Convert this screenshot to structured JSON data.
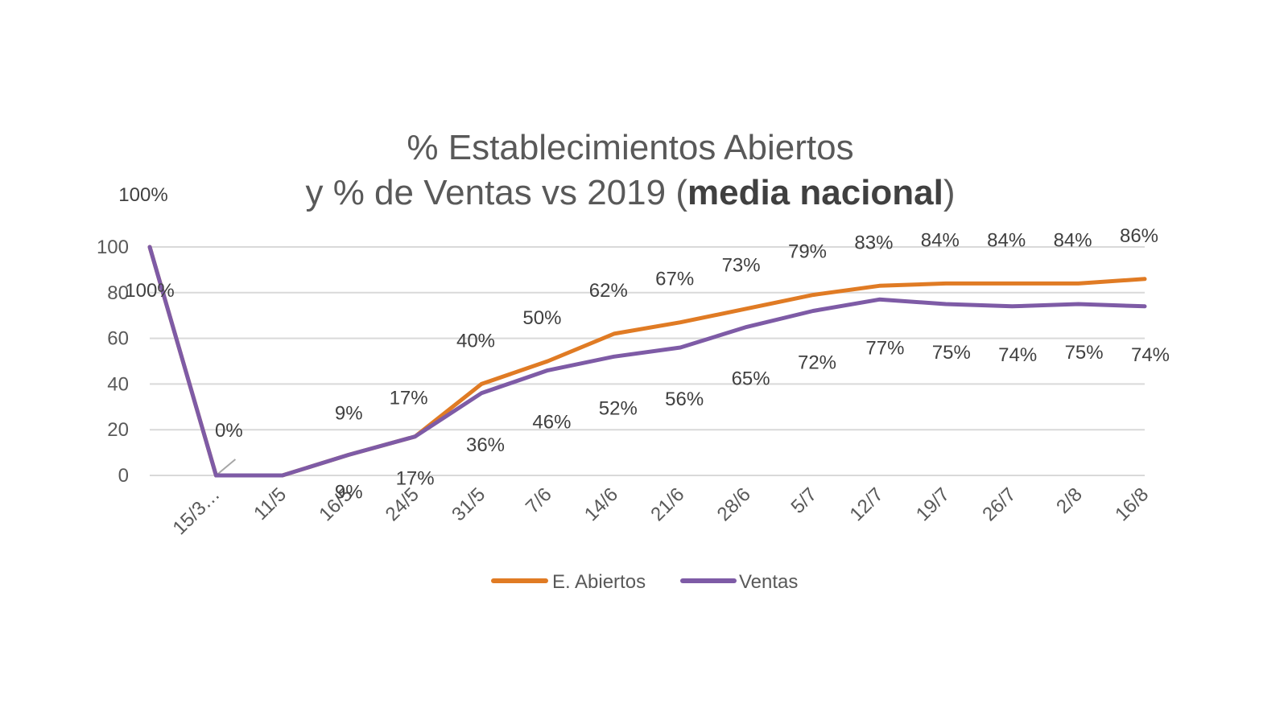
{
  "chart_data": {
    "type": "line",
    "title": "% Establecimientos Abiertos",
    "subtitle_prefix": "y % de Ventas vs 2019 (",
    "subtitle_bold": "media nacional",
    "subtitle_suffix": ")",
    "categories": [
      "",
      "15/3…",
      "11/5",
      "16/5",
      "24/5",
      "31/5",
      "7/6",
      "14/6",
      "21/6",
      "28/6",
      "5/7",
      "12/7",
      "19/7",
      "26/7",
      "2/8",
      "16/8"
    ],
    "ylim": [
      0,
      100
    ],
    "yticks": [
      0,
      20,
      40,
      60,
      80,
      100
    ],
    "grid": true,
    "legend_position": "bottom",
    "series": [
      {
        "name": "E. Abiertos",
        "color": "#e07b24",
        "values": [
          100,
          0,
          0,
          9,
          17,
          40,
          50,
          62,
          67,
          73,
          79,
          83,
          84,
          84,
          84,
          86
        ],
        "labels": [
          "100%",
          "0%",
          "",
          "9%",
          "17%",
          "40%",
          "50%",
          "62%",
          "67%",
          "73%",
          "79%",
          "83%",
          "84%",
          "84%",
          "84%",
          "86%"
        ]
      },
      {
        "name": "Ventas",
        "color": "#7e5ba6",
        "values": [
          100,
          0,
          0,
          9,
          17,
          36,
          46,
          52,
          56,
          65,
          72,
          77,
          75,
          74,
          75,
          74
        ],
        "labels": [
          "100%",
          "",
          "",
          "9%",
          "17%",
          "36%",
          "46%",
          "52%",
          "56%",
          "65%",
          "72%",
          "77%",
          "75%",
          "74%",
          "75%",
          "74%"
        ]
      }
    ]
  }
}
